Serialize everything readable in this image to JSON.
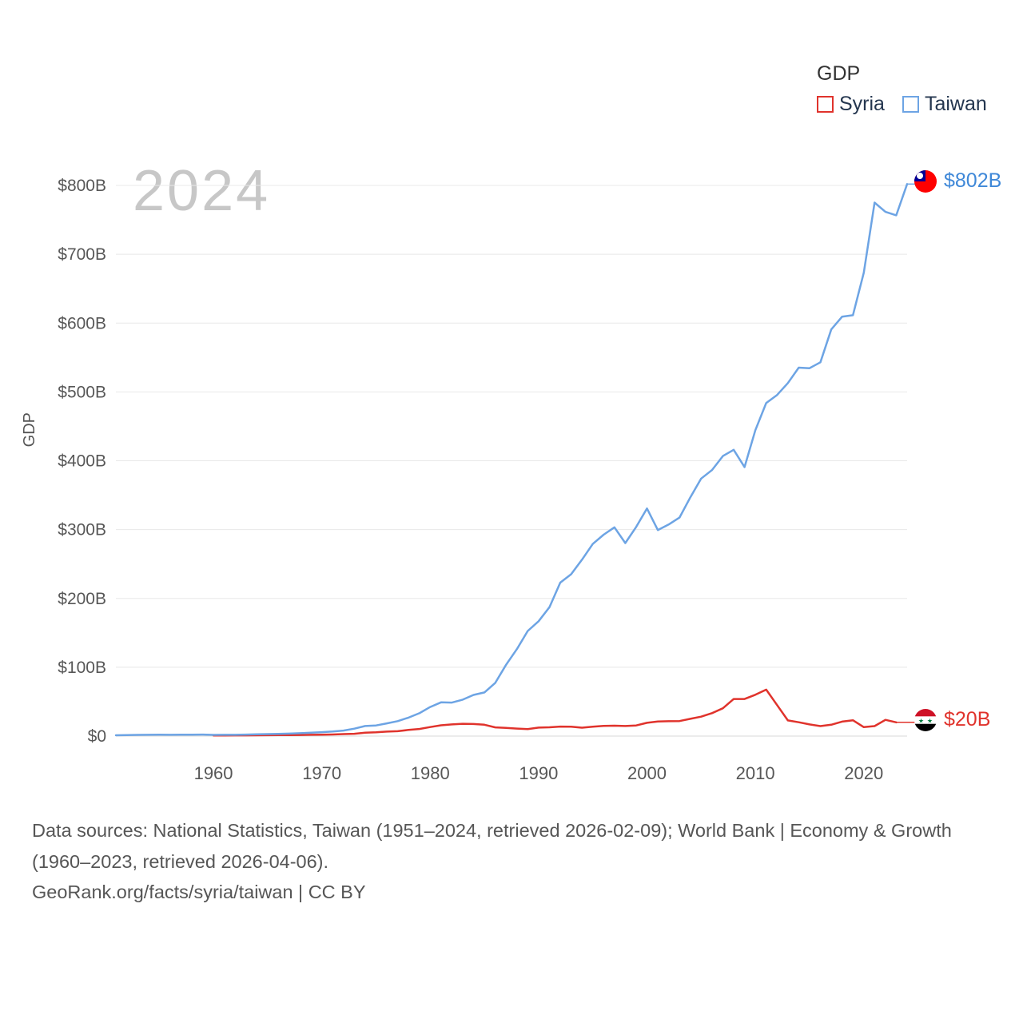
{
  "footer": {
    "sources": "Data sources: National Statistics, Taiwan (1951–2024, retrieved 2026-02-09); World Bank | Economy & Growth (1960–2023, retrieved 2026-04-06).",
    "attribution": "GeoRank.org/facts/syria/taiwan | CC BY"
  },
  "chart_data": {
    "type": "line",
    "title": "GDP",
    "ylabel": "GDP",
    "watermark": "2024",
    "grid": "horizontal",
    "legend_position": "top-right",
    "xlim": [
      1951,
      2024
    ],
    "ylim": [
      0,
      800
    ],
    "y_tick_values": [
      0,
      100,
      200,
      300,
      400,
      500,
      600,
      700,
      800
    ],
    "y_tick_labels": [
      "$0",
      "$100B",
      "$200B",
      "$300B",
      "$400B",
      "$500B",
      "$600B",
      "$700B",
      "$800B"
    ],
    "x_tick_values": [
      1960,
      1970,
      1980,
      1990,
      2000,
      2010,
      2020
    ],
    "series": [
      {
        "name": "Syria",
        "color": "#e0332c",
        "label_color": "#e0332c",
        "end_label": "$20B",
        "flag_icon": "syria-flag",
        "x": [
          1960,
          1961,
          1962,
          1963,
          1964,
          1965,
          1966,
          1967,
          1968,
          1969,
          1970,
          1971,
          1972,
          1973,
          1974,
          1975,
          1976,
          1977,
          1978,
          1979,
          1980,
          1981,
          1982,
          1983,
          1984,
          1985,
          1986,
          1987,
          1988,
          1989,
          1990,
          1991,
          1992,
          1993,
          1994,
          1995,
          1996,
          1997,
          1998,
          1999,
          2000,
          2001,
          2002,
          2003,
          2004,
          2005,
          2006,
          2007,
          2008,
          2009,
          2010,
          2011,
          2012,
          2013,
          2014,
          2015,
          2016,
          2017,
          2018,
          2019,
          2020,
          2021,
          2022,
          2023
        ],
        "values": [
          0.86,
          0.92,
          1.0,
          1.1,
          1.2,
          1.3,
          1.35,
          1.4,
          1.6,
          1.8,
          2.1,
          2.3,
          2.9,
          3.4,
          5.0,
          5.4,
          6.5,
          7.1,
          8.9,
          10.3,
          13.1,
          15.7,
          16.9,
          17.9,
          17.5,
          16.5,
          12.7,
          11.8,
          10.9,
          10.2,
          12.3,
          12.8,
          13.8,
          13.7,
          12.2,
          13.6,
          14.9,
          15.1,
          14.6,
          15.4,
          19.3,
          21.1,
          21.6,
          21.8,
          25.1,
          28.2,
          33.3,
          40.4,
          53.9,
          53.9,
          60.0,
          67.5,
          45.0,
          22.8,
          20.1,
          17.0,
          14.5,
          16.5,
          21.0,
          23.0,
          13.0,
          14.5,
          23.6,
          20.0
        ]
      },
      {
        "name": "Taiwan",
        "color": "#6da4e4",
        "label_color": "#3f88d8",
        "end_label": "$802B",
        "flag_icon": "taiwan-flag",
        "x": [
          1951,
          1952,
          1953,
          1954,
          1955,
          1956,
          1957,
          1958,
          1959,
          1960,
          1961,
          1962,
          1963,
          1964,
          1965,
          1966,
          1967,
          1968,
          1969,
          1970,
          1971,
          1972,
          1973,
          1974,
          1975,
          1976,
          1977,
          1978,
          1979,
          1980,
          1981,
          1982,
          1983,
          1984,
          1985,
          1986,
          1987,
          1988,
          1989,
          1990,
          1991,
          1992,
          1993,
          1994,
          1995,
          1996,
          1997,
          1998,
          1999,
          2000,
          2001,
          2002,
          2003,
          2004,
          2005,
          2006,
          2007,
          2008,
          2009,
          2010,
          2011,
          2012,
          2013,
          2014,
          2015,
          2016,
          2017,
          2018,
          2019,
          2020,
          2021,
          2022,
          2023,
          2024
        ],
        "values": [
          1.2,
          1.5,
          1.7,
          1.8,
          2.0,
          1.9,
          2.1,
          2.1,
          2.2,
          1.7,
          1.8,
          1.9,
          2.2,
          2.6,
          2.9,
          3.2,
          3.6,
          4.2,
          4.9,
          5.7,
          6.6,
          8.0,
          10.8,
          14.6,
          15.5,
          18.5,
          21.7,
          26.8,
          33.2,
          42.3,
          49.0,
          48.6,
          52.9,
          59.8,
          63.4,
          77.3,
          103.6,
          126.5,
          152.7,
          166.8,
          187.3,
          222.9,
          235.1,
          256.2,
          279.1,
          292.6,
          303.3,
          280.4,
          303.9,
          330.7,
          299.3,
          307.4,
          317.4,
          346.9,
          374.1,
          386.5,
          406.9,
          415.9,
          390.8,
          444.3,
          483.9,
          495.6,
          512.9,
          535.3,
          534.5,
          543.1,
          590.8,
          609.2,
          611.4,
          673.2,
          775.0,
          761.6,
          756.6,
          802.0
        ]
      }
    ]
  }
}
